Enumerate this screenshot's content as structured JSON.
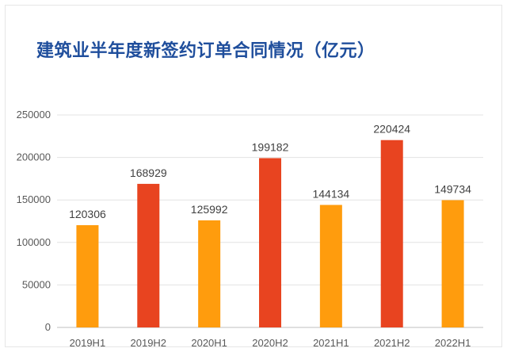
{
  "chart_data": {
    "type": "bar",
    "title": "建筑业半年度新签约订单合同情况（亿元）",
    "xlabel": "",
    "ylabel": "",
    "categories": [
      "2019H1",
      "2019H2",
      "2020H1",
      "2020H2",
      "2021H1",
      "2021H2",
      "2022H1"
    ],
    "values": [
      120306,
      168929,
      125992,
      199182,
      144134,
      220424,
      149734
    ],
    "bar_colors": [
      "#ff9c0d",
      "#e84420",
      "#ff9c0d",
      "#e84420",
      "#ff9c0d",
      "#e84420",
      "#ff9c0d"
    ],
    "ylim": [
      0,
      250000
    ],
    "yticks": [
      0,
      50000,
      100000,
      150000,
      200000,
      250000
    ],
    "grid": true,
    "legend": "none"
  }
}
